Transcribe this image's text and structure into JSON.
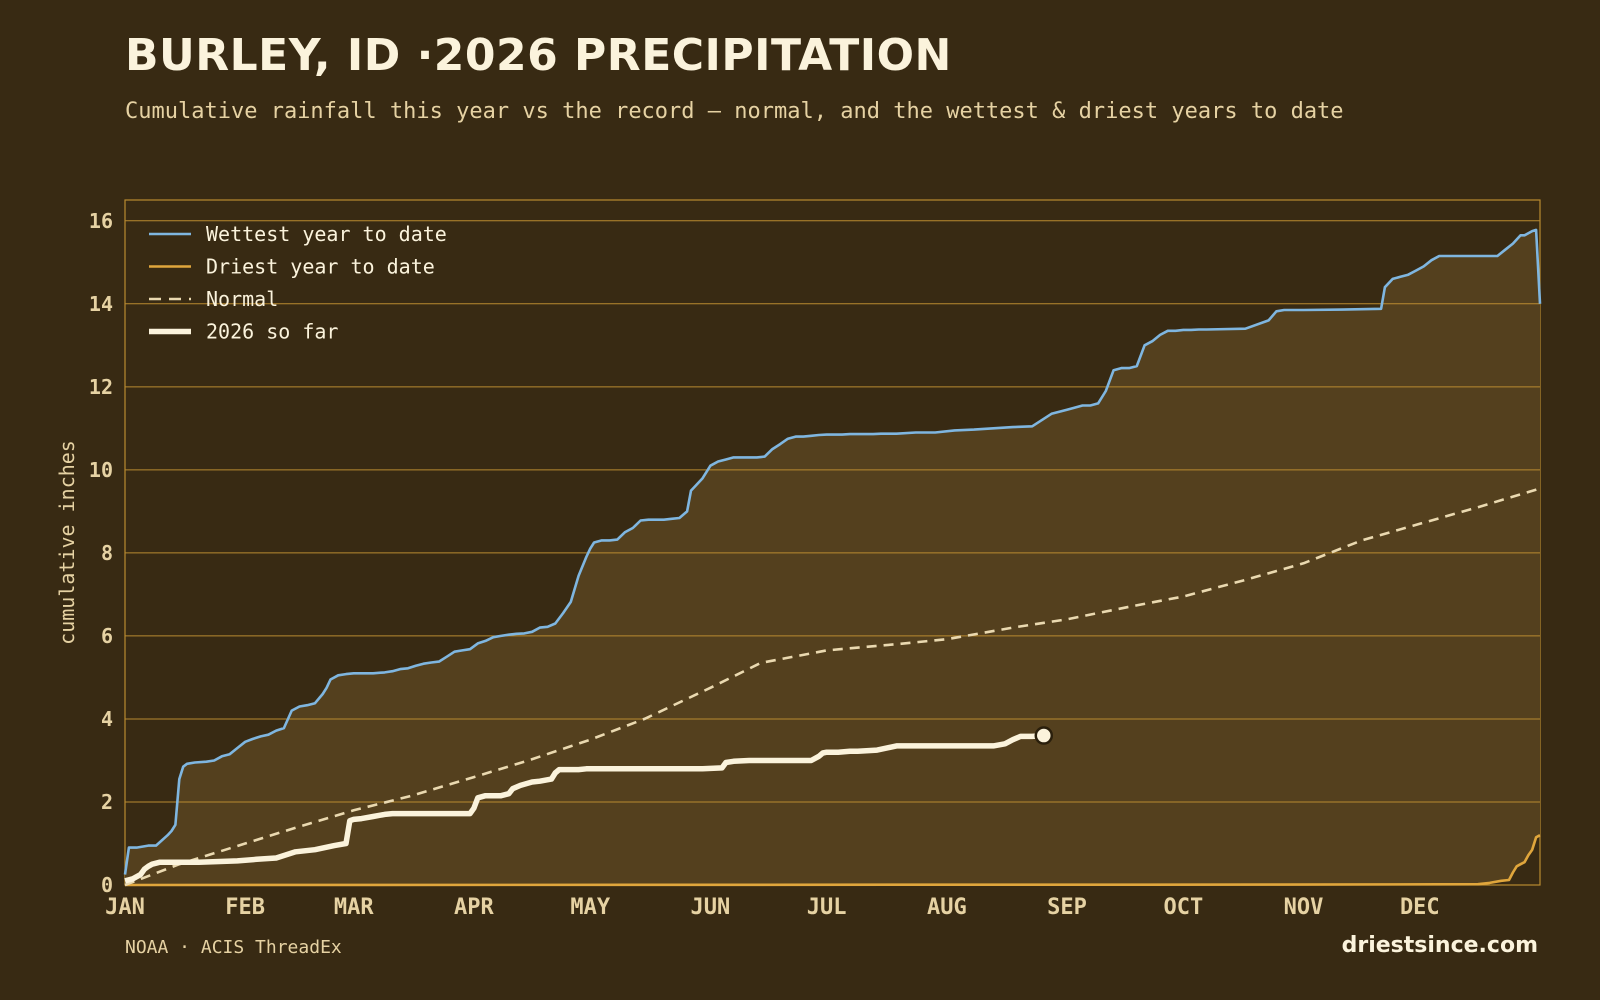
{
  "header": {
    "title": "BURLEY, ID ·2026 PRECIPITATION",
    "subtitle": "Cumulative rainfall this year vs the record — normal, and the wettest & driest years to date"
  },
  "footer": {
    "source": "NOAA · ACIS ThreadEx",
    "brand": "driestsince.com"
  },
  "colors": {
    "background": "#382a13",
    "plot_fill_band": "#54401e",
    "grid": "#b98a30",
    "wettest": "#7fb6e0",
    "driest": "#e0a63c",
    "normal": "#ead9b0",
    "current": "#fbf3dc"
  },
  "chart_data": {
    "type": "line",
    "title": "BURLEY, ID ·2026 PRECIPITATION",
    "subtitle": "Cumulative rainfall this year vs the record — normal, and the wettest & driest years to date",
    "xlabel": "",
    "ylabel": "cumulative inches",
    "x_unit": "day of year",
    "xlim": [
      1,
      366
    ],
    "ylim": [
      0,
      16.5
    ],
    "y_ticks": [
      0,
      2,
      4,
      6,
      8,
      10,
      12,
      14,
      16
    ],
    "x_tick_labels": [
      {
        "label": "JAN",
        "day": 1
      },
      {
        "label": "FEB",
        "day": 32
      },
      {
        "label": "MAR",
        "day": 60
      },
      {
        "label": "APR",
        "day": 91
      },
      {
        "label": "MAY",
        "day": 121
      },
      {
        "label": "JUN",
        "day": 152
      },
      {
        "label": "JUL",
        "day": 182
      },
      {
        "label": "AUG",
        "day": 213
      },
      {
        "label": "SEP",
        "day": 244
      },
      {
        "label": "OCT",
        "day": 274
      },
      {
        "label": "NOV",
        "day": 305
      },
      {
        "label": "DEC",
        "day": 335
      }
    ],
    "grid": true,
    "legend_position": "top-left",
    "series": [
      {
        "name": "Wettest year to date",
        "style": "solid",
        "x": [
          1,
          2,
          4,
          7,
          9,
          12,
          13,
          14,
          15,
          16,
          17,
          19,
          22,
          24,
          26,
          28,
          30,
          32,
          34,
          36,
          38,
          40,
          42,
          44,
          46,
          48,
          50,
          52,
          53,
          54,
          56,
          58,
          60,
          62,
          65,
          68,
          70,
          72,
          74,
          76,
          78,
          80,
          82,
          84,
          86,
          88,
          90,
          91,
          92,
          94,
          96,
          98,
          100,
          102,
          104,
          106,
          108,
          110,
          112,
          114,
          116,
          118,
          120,
          121,
          122,
          124,
          126,
          128,
          130,
          132,
          134,
          136,
          138,
          140,
          142,
          144,
          146,
          147,
          148,
          150,
          152,
          154,
          156,
          158,
          160,
          162,
          164,
          166,
          168,
          170,
          172,
          174,
          176,
          178,
          180,
          182,
          184,
          186,
          188,
          190,
          192,
          194,
          196,
          198,
          200,
          205,
          210,
          215,
          220,
          225,
          230,
          235,
          240,
          244,
          246,
          248,
          250,
          252,
          254,
          256,
          258,
          260,
          262,
          264,
          266,
          268,
          270,
          272,
          274,
          276,
          278,
          280,
          290,
          296,
          298,
          300,
          305,
          315,
          325,
          326,
          328,
          330,
          332,
          334,
          336,
          338,
          340,
          345,
          350,
          355,
          357,
          359,
          361,
          362,
          364,
          365,
          366
        ],
        "values": [
          0.25,
          0.9,
          0.9,
          0.95,
          0.95,
          1.2,
          1.3,
          1.45,
          2.55,
          2.85,
          2.92,
          2.95,
          2.97,
          3.0,
          3.1,
          3.15,
          3.3,
          3.45,
          3.52,
          3.58,
          3.62,
          3.72,
          3.78,
          4.2,
          4.3,
          4.33,
          4.38,
          4.6,
          4.75,
          4.95,
          5.05,
          5.08,
          5.1,
          5.1,
          5.1,
          5.12,
          5.15,
          5.2,
          5.22,
          5.28,
          5.33,
          5.36,
          5.38,
          5.5,
          5.62,
          5.65,
          5.68,
          5.75,
          5.82,
          5.88,
          5.97,
          6.0,
          6.03,
          6.05,
          6.06,
          6.1,
          6.2,
          6.22,
          6.3,
          6.55,
          6.82,
          7.45,
          7.9,
          8.1,
          8.25,
          8.3,
          8.3,
          8.32,
          8.5,
          8.6,
          8.78,
          8.8,
          8.8,
          8.8,
          8.82,
          8.84,
          9.0,
          9.5,
          9.6,
          9.8,
          10.1,
          10.2,
          10.25,
          10.3,
          10.3,
          10.3,
          10.3,
          10.32,
          10.5,
          10.62,
          10.75,
          10.8,
          10.8,
          10.82,
          10.84,
          10.85,
          10.85,
          10.85,
          10.86,
          10.86,
          10.86,
          10.86,
          10.87,
          10.87,
          10.87,
          10.9,
          10.9,
          10.95,
          10.97,
          11.0,
          11.03,
          11.05,
          11.35,
          11.45,
          11.5,
          11.55,
          11.55,
          11.6,
          11.9,
          12.4,
          12.45,
          12.45,
          12.5,
          13.0,
          13.1,
          13.25,
          13.35,
          13.35,
          13.37,
          13.37,
          13.38,
          13.38,
          13.4,
          13.6,
          13.82,
          13.85,
          13.85,
          13.86,
          13.88,
          14.4,
          14.6,
          14.65,
          14.7,
          14.8,
          14.9,
          15.05,
          15.15,
          15.15,
          15.15,
          15.15,
          15.3,
          15.45,
          15.65,
          15.65,
          15.75,
          15.78,
          14.0
        ]
      },
      {
        "name": "Driest year to date",
        "style": "solid",
        "x": [
          1,
          300,
          350,
          353,
          356,
          358,
          359,
          360,
          361,
          362,
          363,
          364,
          365,
          366
        ],
        "values": [
          0,
          0.01,
          0.02,
          0.05,
          0.1,
          0.12,
          0.3,
          0.45,
          0.5,
          0.55,
          0.72,
          0.85,
          1.15,
          1.2
        ]
      },
      {
        "name": "Normal",
        "style": "dashed",
        "x": [
          1,
          15,
          32,
          45,
          60,
          75,
          91,
          105,
          121,
          135,
          152,
          165,
          182,
          200,
          213,
          230,
          244,
          260,
          274,
          290,
          305,
          320,
          335,
          350,
          366
        ],
        "values": [
          0,
          0.5,
          1.0,
          1.38,
          1.8,
          2.15,
          2.6,
          3.0,
          3.5,
          4.0,
          4.75,
          5.35,
          5.65,
          5.8,
          5.92,
          6.2,
          6.4,
          6.7,
          6.95,
          7.35,
          7.75,
          8.3,
          8.7,
          9.1,
          9.55
        ]
      },
      {
        "name": "2026 so far",
        "style": "thick",
        "x": [
          1,
          3,
          5,
          6,
          7,
          8,
          10,
          12,
          20,
          30,
          35,
          40,
          45,
          50,
          55,
          58,
          59,
          60,
          62,
          65,
          68,
          70,
          72,
          75,
          80,
          85,
          88,
          90,
          91,
          92,
          94,
          96,
          98,
          100,
          101,
          103,
          106,
          108,
          111,
          112,
          113,
          115,
          118,
          120,
          125,
          130,
          135,
          140,
          145,
          150,
          155,
          156,
          158,
          162,
          165,
          170,
          178,
          180,
          181,
          182,
          185,
          188,
          190,
          195,
          200,
          205,
          210,
          215,
          220,
          225,
          228,
          230,
          232,
          235,
          238
        ],
        "values": [
          0.1,
          0.15,
          0.25,
          0.38,
          0.45,
          0.5,
          0.55,
          0.55,
          0.55,
          0.58,
          0.62,
          0.65,
          0.8,
          0.85,
          0.95,
          1.0,
          1.55,
          1.58,
          1.6,
          1.65,
          1.7,
          1.72,
          1.72,
          1.72,
          1.72,
          1.72,
          1.72,
          1.72,
          1.85,
          2.1,
          2.15,
          2.15,
          2.15,
          2.2,
          2.32,
          2.4,
          2.48,
          2.5,
          2.55,
          2.7,
          2.78,
          2.78,
          2.78,
          2.8,
          2.8,
          2.8,
          2.8,
          2.8,
          2.8,
          2.8,
          2.82,
          2.95,
          2.98,
          3.0,
          3.0,
          3.0,
          3.0,
          3.1,
          3.18,
          3.2,
          3.2,
          3.22,
          3.22,
          3.25,
          3.35,
          3.35,
          3.35,
          3.35,
          3.35,
          3.35,
          3.4,
          3.5,
          3.58,
          3.58,
          3.6
        ]
      }
    ]
  }
}
